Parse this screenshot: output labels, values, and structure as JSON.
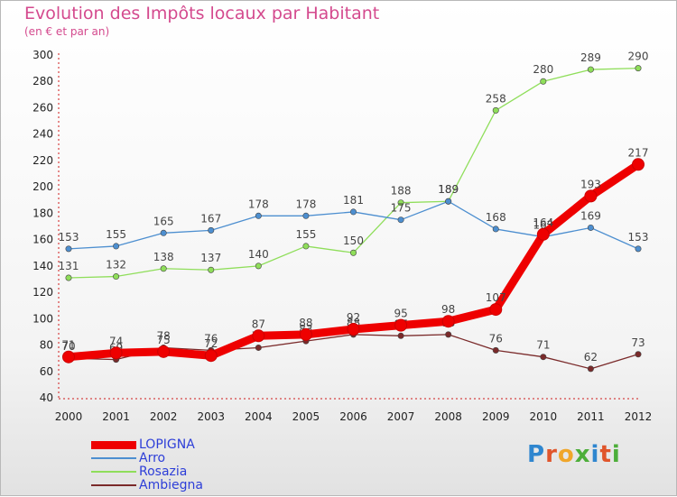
{
  "header": {
    "title": "Evolution des Impôts locaux par Habitant",
    "subtitle": "(en € et par an)"
  },
  "logo": {
    "text": "Proxiti",
    "colors": [
      "#2f86cf",
      "#e0552b",
      "#f0a62a",
      "#4dae3a",
      "#2f86cf",
      "#e0552b",
      "#4dae3a"
    ]
  },
  "chart_data": {
    "type": "line",
    "x": [
      2000,
      2001,
      2002,
      2003,
      2004,
      2005,
      2006,
      2007,
      2008,
      2009,
      2010,
      2011,
      2012
    ],
    "ylim": [
      40,
      300
    ],
    "yticks": [
      40,
      60,
      80,
      100,
      120,
      140,
      160,
      180,
      200,
      220,
      240,
      260,
      280,
      300
    ],
    "grid": false,
    "legend_position": "bottom-left",
    "series": [
      {
        "name": "LOPIGNA",
        "color": "#ee0000",
        "values": [
          71,
          74,
          75,
          72,
          87,
          88,
          92,
          95,
          98,
          107,
          164,
          193,
          217
        ],
        "labels": [
          "71",
          "74",
          "75",
          "72",
          "87",
          "88",
          "92",
          "95",
          "98",
          "107",
          "164",
          "193",
          "217"
        ]
      },
      {
        "name": "Arro",
        "color": "#4d8fd0",
        "values": [
          153,
          155,
          165,
          167,
          178,
          178,
          181,
          175,
          189,
          168,
          162,
          169,
          153
        ],
        "labels": [
          "153",
          "155",
          "165",
          "167",
          "178",
          "178",
          "181",
          "175",
          "189",
          "168",
          "162",
          "169",
          "153"
        ]
      },
      {
        "name": "Rosazia",
        "color": "#8fde5a",
        "values": [
          131,
          132,
          138,
          137,
          140,
          155,
          150,
          188,
          189,
          258,
          280,
          289,
          290
        ],
        "labels": [
          "131",
          "132",
          "138",
          "137",
          "140",
          "155",
          "150",
          "188",
          "189",
          "258",
          "280",
          "289",
          "290"
        ]
      },
      {
        "name": "Ambiegna",
        "color": "#7a2a2a",
        "values": [
          70,
          69,
          78,
          76,
          78,
          83,
          88,
          87,
          88,
          76,
          71,
          62,
          73
        ],
        "labels": [
          "70",
          "69",
          "78",
          "76",
          "78",
          "83",
          "88",
          "87",
          "88",
          "76",
          "71",
          "62",
          "73"
        ]
      }
    ]
  }
}
